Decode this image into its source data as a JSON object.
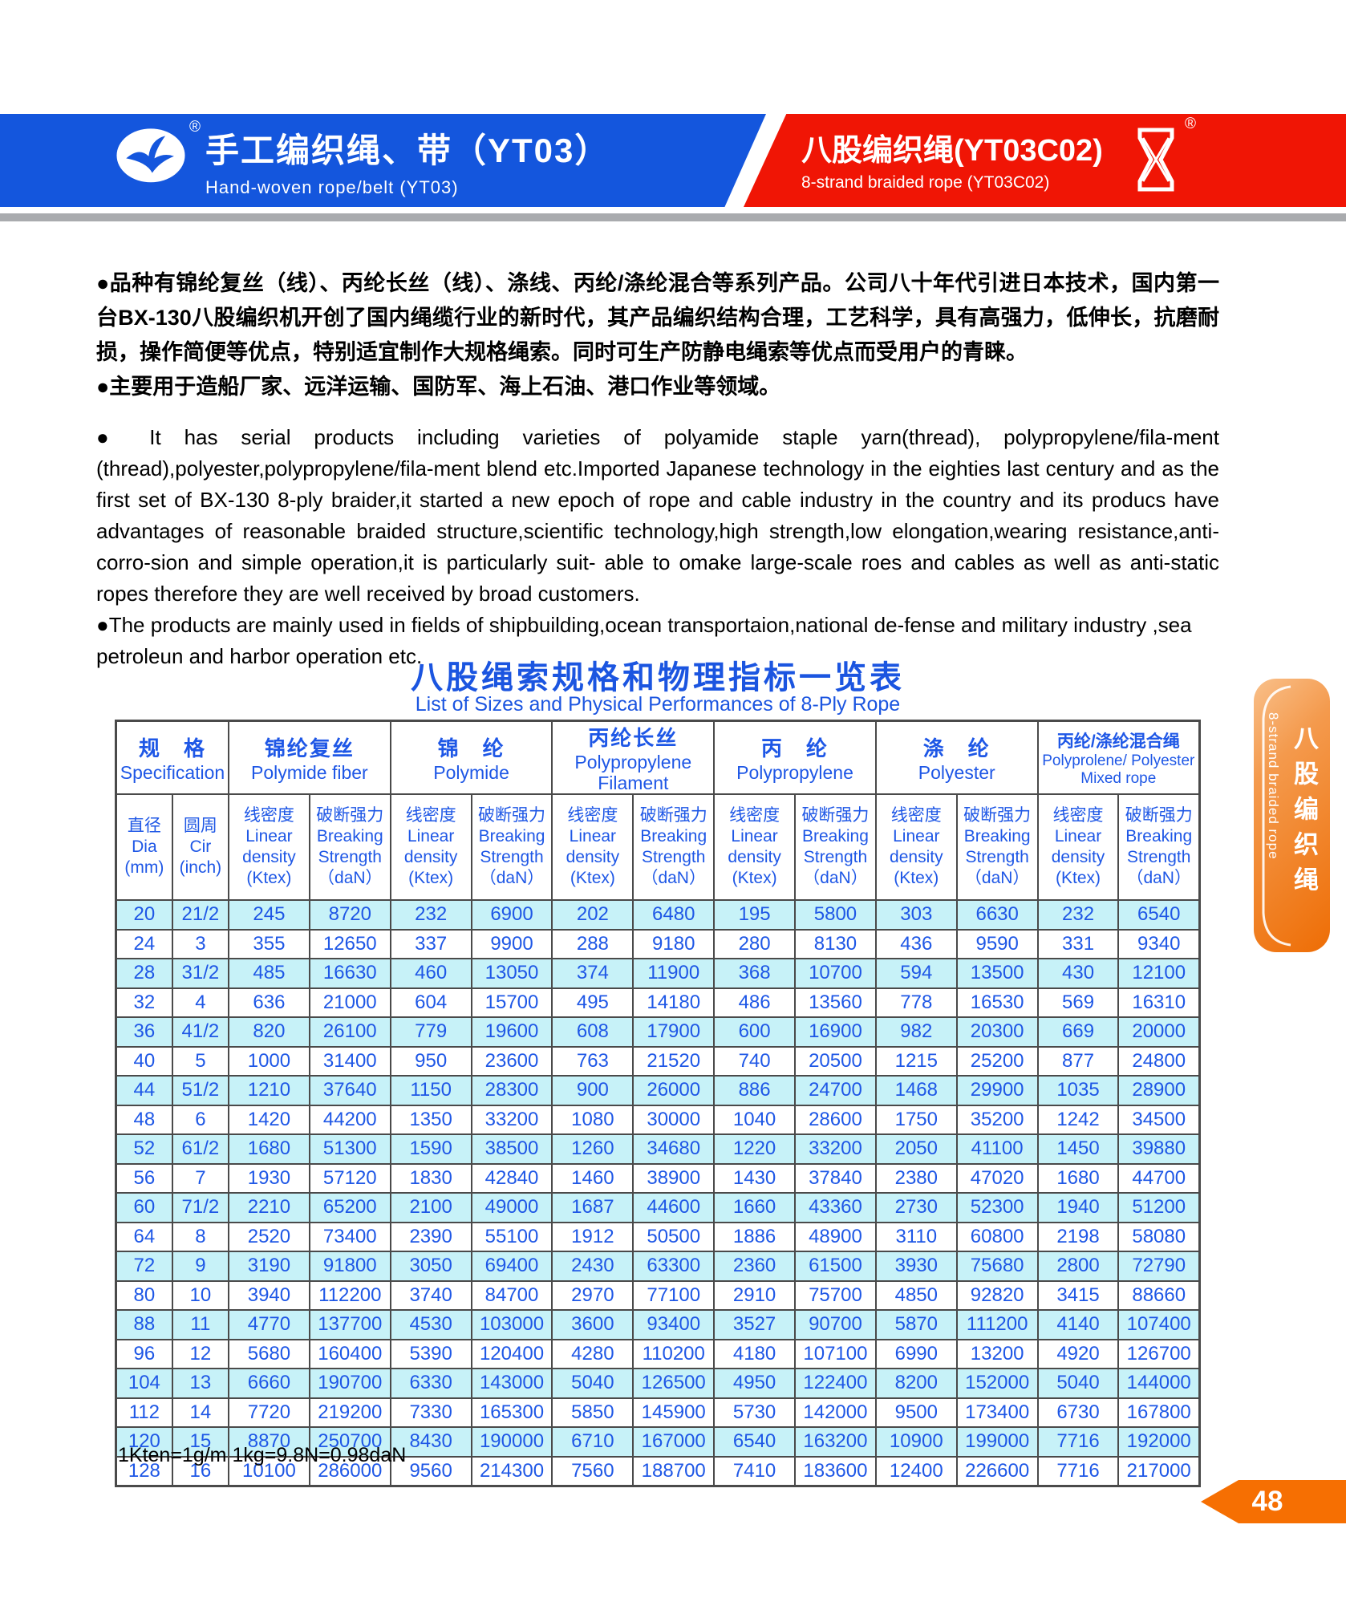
{
  "header": {
    "registered_mark": "®",
    "left_banner": {
      "title_zh": "手工编织绳、带（YT03）",
      "title_en": "Hand-woven rope/belt (YT03)",
      "logo": "seagull-logo",
      "color": "#1456dd"
    },
    "right_banner": {
      "title_zh": "八股编织绳(YT03C02)",
      "title_en": "8-strand braided rope (YT03C02)",
      "logo": "pylon-emblem",
      "color": "#f01505"
    }
  },
  "intro": {
    "zh_p1": "●品种有锦纶复丝（线）、丙纶长丝（线）、涤线、丙纶/涤纶混合等系列产品。公司八十年代引进日本技术，国内第一台BX-130八股编织机开创了国内绳缆行业的新时代，其产品编织结构合理，工艺科学，具有高强力，低伸长，抗磨耐损，操作简便等优点，特别适宜制作大规格绳索。同时可生产防静电绳索等优点而受用户的青睐。",
    "zh_p2": "●主要用于造船厂家、远洋运输、国防军、海上石油、港口作业等领域。",
    "en_p1": "● It has serial products including varieties of polyamide staple yarn(thread), polypropylene/fila-ment (thread),polyester,polypropylene/fila-ment blend etc.Imported Japanese technology in the eighties last century and as the first set of BX-130 8-ply braider,it started a new epoch of rope and cable industry in the country and its producs have advantages of reasonable braided structure,scientific technology,high strength,low elongation,wearing resistance,anti-corro-sion and simple operation,it is particularly suit- able to omake large-scale roes and cables as well as anti-static ropes therefore they are well received by broad customers.",
    "en_p2": "●The products are mainly used in fields of shipbuilding,ocean transportaion,national de-fense and military industry ,sea petroleun and harbor operation etc."
  },
  "table": {
    "title_zh": "八股绳索规格和物理指标一览表",
    "title_en": "List of Sizes and Physical Performances of 8-Ply Rope",
    "groups": [
      {
        "zh": "规　格",
        "en": "Specification"
      },
      {
        "zh": "锦纶复丝",
        "en": "Polymide fiber"
      },
      {
        "zh": "锦　纶",
        "en": "Polymide"
      },
      {
        "zh": "丙纶长丝",
        "en": "Polypropylene\nFilament"
      },
      {
        "zh": "丙　纶",
        "en": "Polypropylene"
      },
      {
        "zh": "涤　纶",
        "en": "Polyester"
      },
      {
        "zh": "丙纶/涤纶混合绳",
        "en": "Polyprolene/ Polyester\nMixed rope"
      }
    ],
    "sub_cells": [
      "直径\nDia\n(mm)",
      "圆周\nCir\n(inch)",
      "线密度\nLinear\ndensity\n(Ktex)",
      "破断强力\nBreaking\nStrength\n（daN）",
      "线密度\nLinear\ndensity\n(Ktex)",
      "破断强力\nBreaking\nStrength\n（daN）",
      "线密度\nLinear\ndensity\n(Ktex)",
      "破断强力\nBreaking\nStrength\n（daN）",
      "线密度\nLinear\ndensity\n(Ktex)",
      "破断强力\nBreaking\nStrength\n（daN）",
      "线密度\nLinear\ndensity\n(Ktex)",
      "破断强力\nBreaking\nStrength\n（daN）",
      "线密度\nLinear\ndensity\n(Ktex)",
      "破断强力\nBreaking\nStrength\n（daN）"
    ],
    "rows": [
      [
        "20",
        "21/2",
        "245",
        "8720",
        "232",
        "6900",
        "202",
        "6480",
        "195",
        "5800",
        "303",
        "6630",
        "232",
        "6540"
      ],
      [
        "24",
        "3",
        "355",
        "12650",
        "337",
        "9900",
        "288",
        "9180",
        "280",
        "8130",
        "436",
        "9590",
        "331",
        "9340"
      ],
      [
        "28",
        "31/2",
        "485",
        "16630",
        "460",
        "13050",
        "374",
        "11900",
        "368",
        "10700",
        "594",
        "13500",
        "430",
        "12100"
      ],
      [
        "32",
        "4",
        "636",
        "21000",
        "604",
        "15700",
        "495",
        "14180",
        "486",
        "13560",
        "778",
        "16530",
        "569",
        "16310"
      ],
      [
        "36",
        "41/2",
        "820",
        "26100",
        "779",
        "19600",
        "608",
        "17900",
        "600",
        "16900",
        "982",
        "20300",
        "669",
        "20000"
      ],
      [
        "40",
        "5",
        "1000",
        "31400",
        "950",
        "23600",
        "763",
        "21520",
        "740",
        "20500",
        "1215",
        "25200",
        "877",
        "24800"
      ],
      [
        "44",
        "51/2",
        "1210",
        "37640",
        "1150",
        "28300",
        "900",
        "26000",
        "886",
        "24700",
        "1468",
        "29900",
        "1035",
        "28900"
      ],
      [
        "48",
        "6",
        "1420",
        "44200",
        "1350",
        "33200",
        "1080",
        "30000",
        "1040",
        "28600",
        "1750",
        "35200",
        "1242",
        "34500"
      ],
      [
        "52",
        "61/2",
        "1680",
        "51300",
        "1590",
        "38500",
        "1260",
        "34680",
        "1220",
        "33200",
        "2050",
        "41100",
        "1450",
        "39880"
      ],
      [
        "56",
        "7",
        "1930",
        "57120",
        "1830",
        "42840",
        "1460",
        "38900",
        "1430",
        "37840",
        "2380",
        "47020",
        "1680",
        "44700"
      ],
      [
        "60",
        "71/2",
        "2210",
        "65200",
        "2100",
        "49000",
        "1687",
        "44600",
        "1660",
        "43360",
        "2730",
        "52300",
        "1940",
        "51200"
      ],
      [
        "64",
        "8",
        "2520",
        "73400",
        "2390",
        "55100",
        "1912",
        "50500",
        "1886",
        "48900",
        "3110",
        "60800",
        "2198",
        "58080"
      ],
      [
        "72",
        "9",
        "3190",
        "91800",
        "3050",
        "69400",
        "2430",
        "63300",
        "2360",
        "61500",
        "3930",
        "75680",
        "2800",
        "72790"
      ],
      [
        "80",
        "10",
        "3940",
        "112200",
        "3740",
        "84700",
        "2970",
        "77100",
        "2910",
        "75700",
        "4850",
        "92820",
        "3415",
        "88660"
      ],
      [
        "88",
        "11",
        "4770",
        "137700",
        "4530",
        "103000",
        "3600",
        "93400",
        "3527",
        "90700",
        "5870",
        "111200",
        "4140",
        "107400"
      ],
      [
        "96",
        "12",
        "5680",
        "160400",
        "5390",
        "120400",
        "4280",
        "110200",
        "4180",
        "107100",
        "6990",
        "13200",
        "4920",
        "126700"
      ],
      [
        "104",
        "13",
        "6660",
        "190700",
        "6330",
        "143000",
        "5040",
        "126500",
        "4950",
        "122400",
        "8200",
        "152000",
        "5040",
        "144000"
      ],
      [
        "112",
        "14",
        "7720",
        "219200",
        "7330",
        "165300",
        "5850",
        "145900",
        "5730",
        "142000",
        "9500",
        "173400",
        "6730",
        "167800"
      ],
      [
        "120",
        "15",
        "8870",
        "250700",
        "8430",
        "190000",
        "6710",
        "167000",
        "6540",
        "163200",
        "10900",
        "199000",
        "7716",
        "192000"
      ],
      [
        "128",
        "16",
        "10100",
        "286000",
        "9560",
        "214300",
        "7560",
        "188700",
        "7410",
        "183600",
        "12400",
        "226600",
        "7716",
        "217000"
      ]
    ],
    "footnote": "1Kten=1g/m  1kg=9.8N=0.98daN"
  },
  "side_tab": {
    "zh": "八股编织绳",
    "en": "8-strand braided rope"
  },
  "page_number": "48",
  "colors": {
    "banner_blue": "#1456dd",
    "banner_red": "#f01505",
    "divider_gray": "#a9abae",
    "table_text_blue": "#1e57e6",
    "row_cyan": "#c7f2f8",
    "tab_orange": "#ee6d05",
    "arrow_orange": "#f66f02"
  }
}
